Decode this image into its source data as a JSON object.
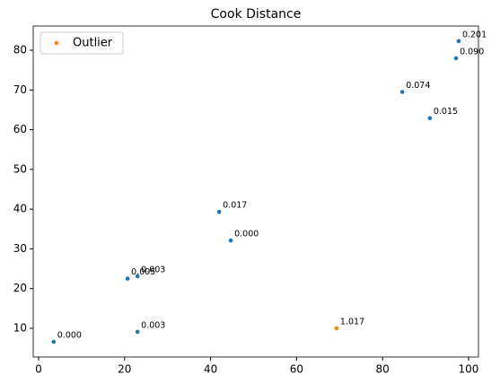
{
  "chart_data": {
    "type": "scatter",
    "title": "Cook Distance",
    "series": [
      {
        "color": "#1f77b4",
        "x": [
          3.5,
          23.0,
          20.7,
          23.0,
          42.0,
          44.7,
          84.6,
          91.0,
          97.1,
          97.7
        ],
        "values": [
          6.6,
          9.1,
          22.5,
          23.1,
          39.3,
          32.1,
          69.5,
          62.9,
          78.0,
          82.3
        ],
        "labels": [
          "0.000",
          "0.003",
          "0.005",
          "0.003",
          "0.017",
          "0.000",
          "0.074",
          "0.015",
          "0.090",
          "0.201"
        ]
      },
      {
        "name": "Outlier",
        "color": "#ff7f0e",
        "x": [
          69.3
        ],
        "values": [
          10.0
        ],
        "labels": [
          "1.017"
        ]
      }
    ],
    "xlim": [
      -1.25,
      102.3
    ],
    "ylim": [
      2.76,
      86.1
    ],
    "xticks": [
      0,
      20,
      40,
      60,
      80,
      100
    ],
    "yticks": [
      10,
      20,
      30,
      40,
      50,
      60,
      70,
      80
    ],
    "grid": false,
    "legend": "upper-left"
  }
}
